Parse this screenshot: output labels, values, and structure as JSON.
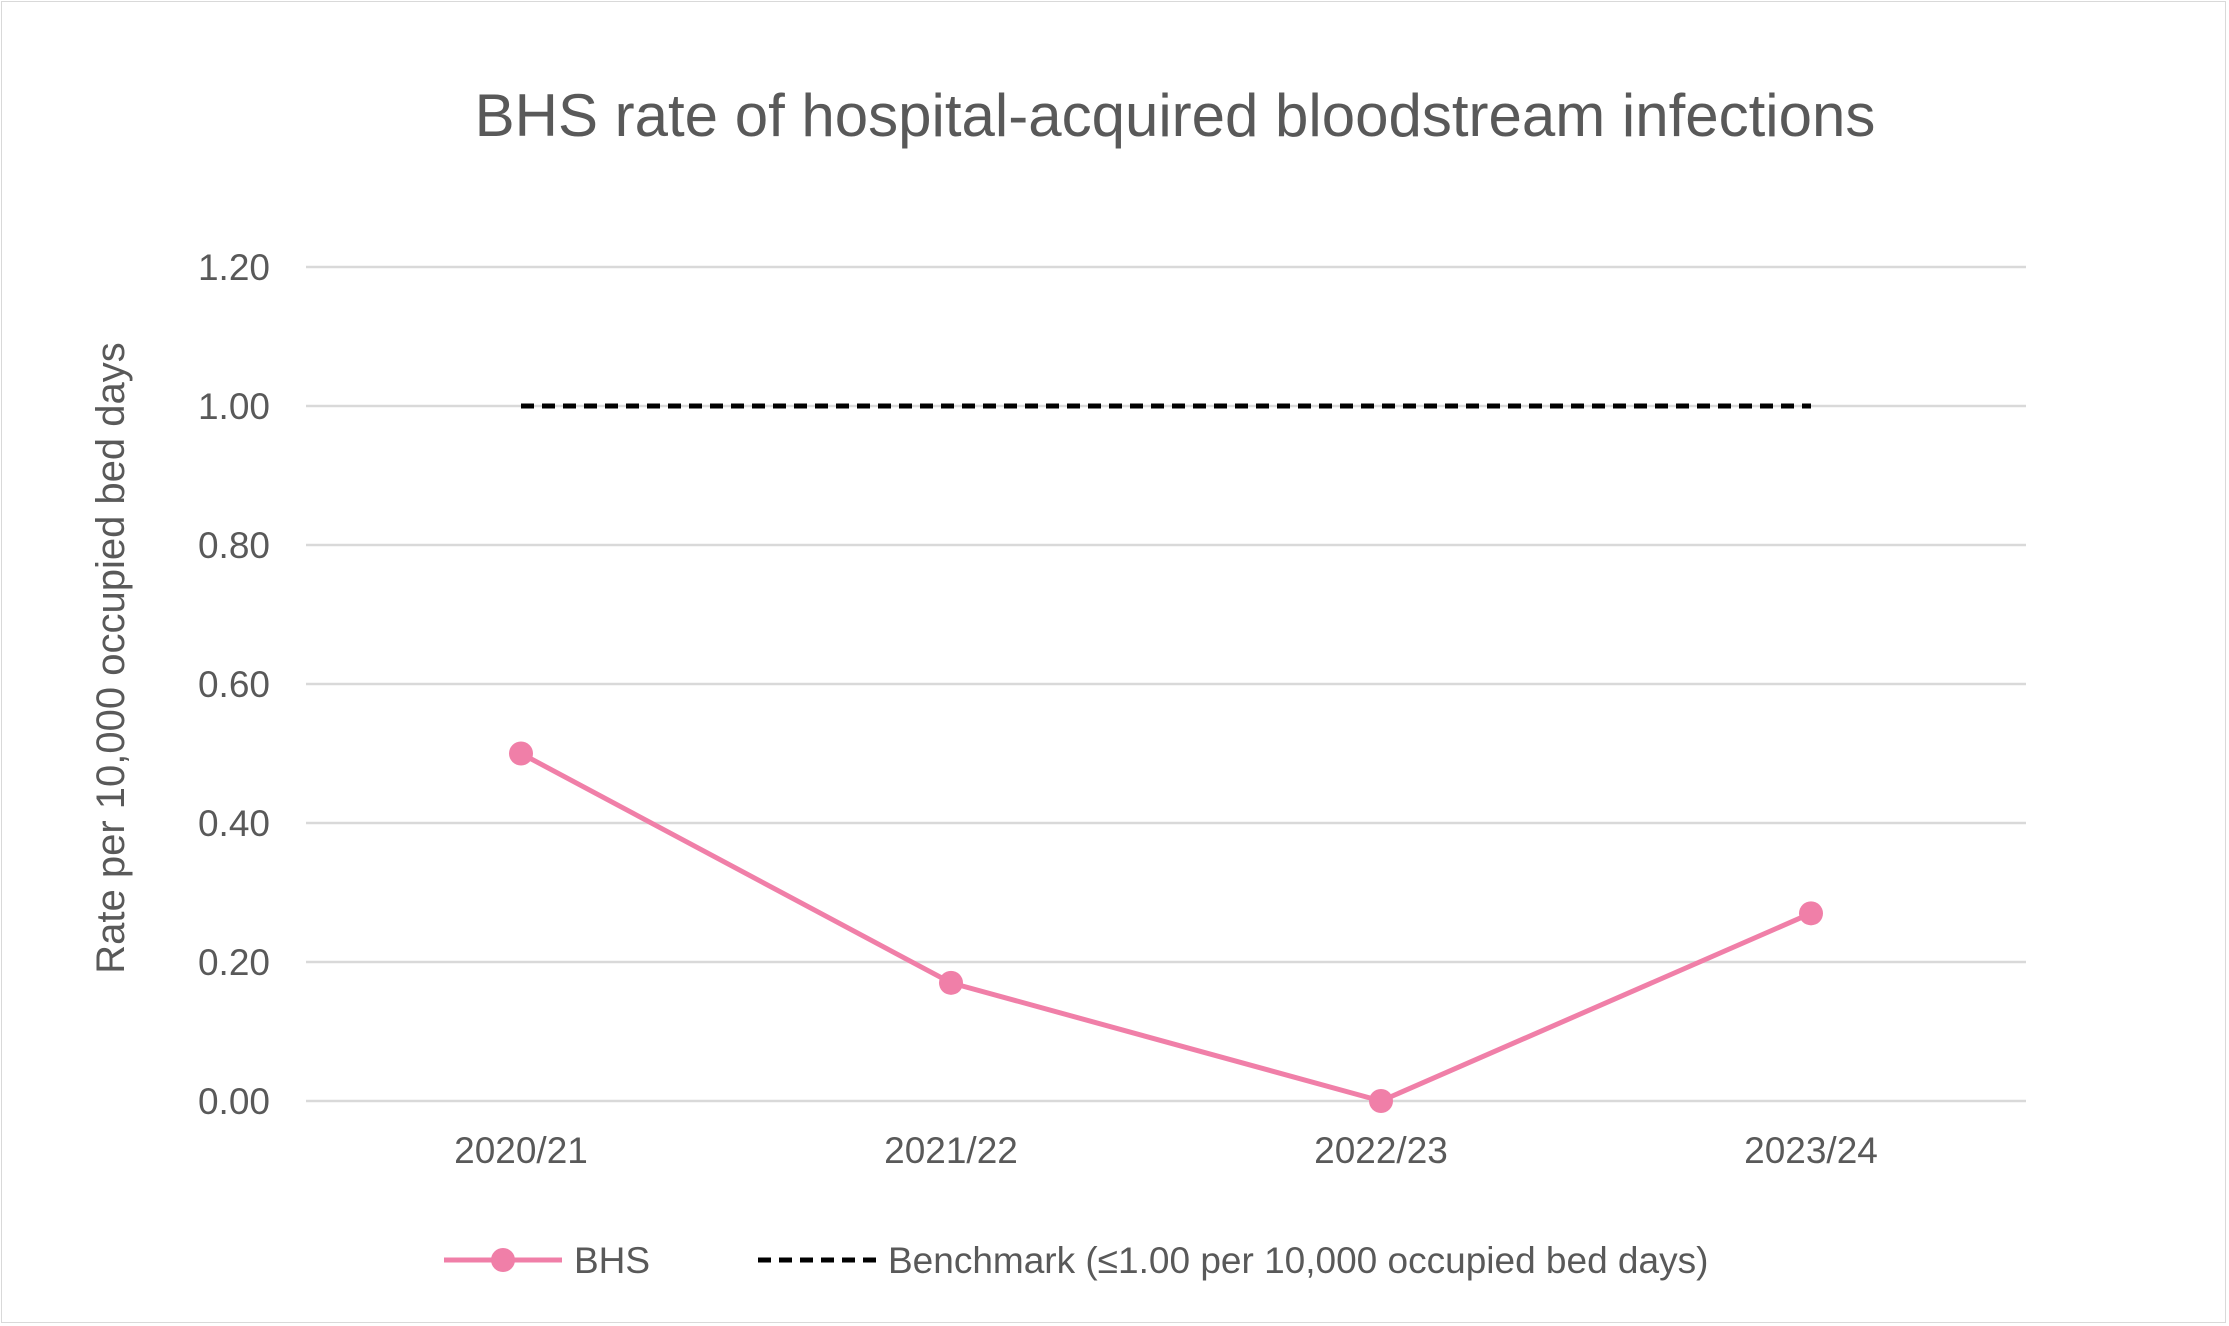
{
  "chart_data": {
    "type": "line",
    "title": "BHS rate of hospital-acquired bloodstream infections",
    "xlabel": "",
    "ylabel": "Rate per 10,000 occupied bed days",
    "categories": [
      "2020/21",
      "2021/22",
      "2022/23",
      "2023/24"
    ],
    "ylim": [
      0,
      1.2
    ],
    "yticks": [
      "0.00",
      "0.20",
      "0.40",
      "0.60",
      "0.80",
      "1.00",
      "1.20"
    ],
    "ytick_values": [
      0,
      0.2,
      0.4,
      0.6,
      0.8,
      1.0,
      1.2
    ],
    "grid": true,
    "legend_position": "bottom",
    "series": [
      {
        "name": "BHS",
        "values": [
          0.5,
          0.17,
          0.0,
          0.27
        ],
        "color": "#f07fa8",
        "style": "solid",
        "markers": true
      },
      {
        "name": "Benchmark (≤1.00 per 10,000 occupied bed days)",
        "values": [
          1.0,
          1.0,
          1.0,
          1.0
        ],
        "color": "#000000",
        "style": "dashed",
        "markers": false
      }
    ]
  }
}
